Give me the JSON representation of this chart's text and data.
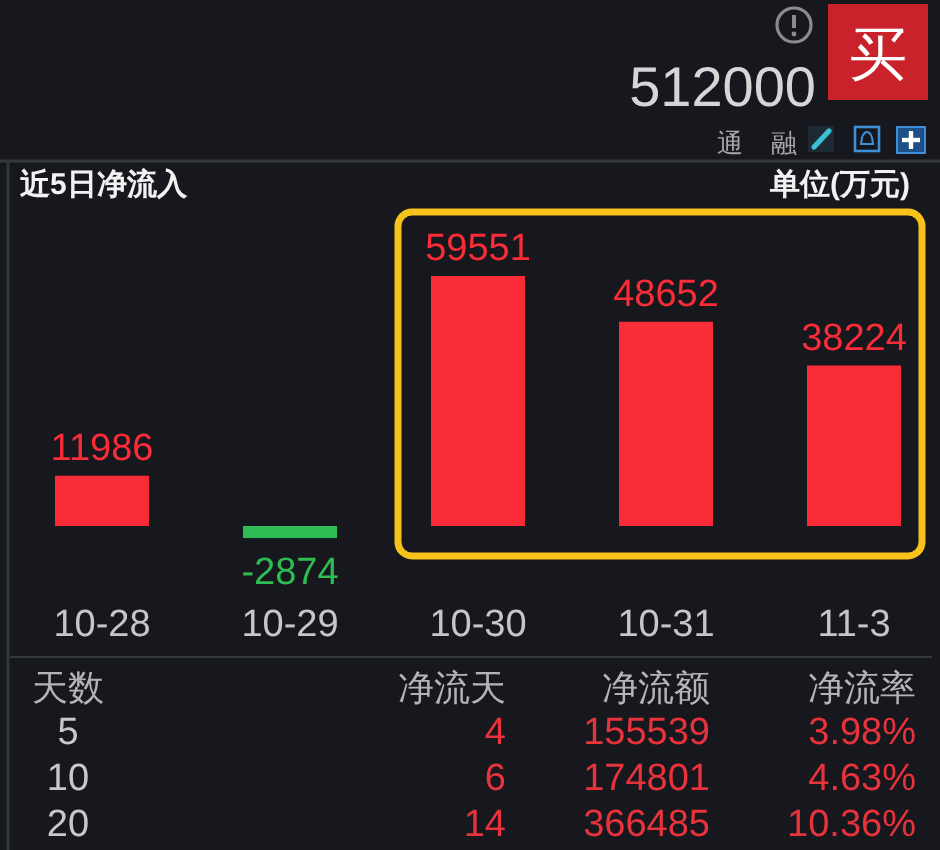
{
  "chart_data": [
    {
      "type": "other",
      "title": "512000",
      "annotations": [
        "买",
        "通",
        "融"
      ]
    },
    {
      "type": "bar",
      "title": "近5日净流入",
      "ylabel": "单位(万元)",
      "categories": [
        "10-28",
        "10-29",
        "10-30",
        "10-31",
        "11-3"
      ],
      "values": [
        11986,
        -2874,
        59551,
        48652,
        38224
      ],
      "colors": [
        "#fa2c37",
        "#2dbd52",
        "#fa2c37",
        "#fa2c37",
        "#fa2c37"
      ],
      "data_labels": true
    },
    {
      "type": "other",
      "categories": [
        "天数",
        "净流天",
        "净流额",
        "净流率"
      ],
      "annotations": [
        "5",
        "4",
        "155539",
        "3.98%",
        "10",
        "6",
        "174801",
        "4.63%",
        "20",
        "14",
        "366485",
        "10.36%"
      ]
    }
  ]
}
